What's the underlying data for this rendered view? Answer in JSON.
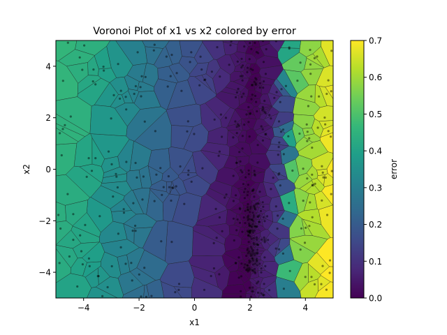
{
  "chart_data": {
    "type": "heatmap",
    "subtype": "voronoi",
    "title": "Voronoi Plot of x1 vs x2 colored by error",
    "xlabel": "x1",
    "ylabel": "x2",
    "xlim": [
      -5,
      5
    ],
    "ylim": [
      -5,
      5
    ],
    "xticks": [
      "−4",
      "−2",
      "0",
      "2",
      "4"
    ],
    "xtick_values": [
      -4,
      -2,
      0,
      2,
      4
    ],
    "yticks": [
      "−4",
      "−2",
      "0",
      "2",
      "4"
    ],
    "ytick_values": [
      -4,
      -2,
      0,
      2,
      4
    ],
    "colorbar": {
      "label": "error",
      "colormap": "viridis",
      "range": [
        0.0,
        0.7
      ],
      "ticks": [
        "0.0",
        "0.1",
        "0.2",
        "0.3",
        "0.4",
        "0.5",
        "0.6",
        "0.7"
      ],
      "tick_values": [
        0.0,
        0.1,
        0.2,
        0.3,
        0.4,
        0.5,
        0.6,
        0.7
      ]
    },
    "error_profile": {
      "description_points": [
        {
          "x1": -5,
          "error": 0.45
        },
        {
          "x1": -4,
          "error": 0.42
        },
        {
          "x1": -3,
          "error": 0.36
        },
        {
          "x1": -2,
          "error": 0.28
        },
        {
          "x1": -1,
          "error": 0.2
        },
        {
          "x1": 0,
          "error": 0.15
        },
        {
          "x1": 1,
          "error": 0.06
        },
        {
          "x1": 2,
          "error": 0.0
        },
        {
          "x1": 3,
          "error": 0.1
        },
        {
          "x1": 3.5,
          "error": 0.5
        },
        {
          "x1": 4,
          "error": 0.58
        },
        {
          "x1": 5,
          "error": 0.7
        }
      ]
    },
    "grid": false,
    "legend": "none"
  },
  "colors": {
    "viridis_stops": [
      "#440154",
      "#482878",
      "#3e4a89",
      "#31688e",
      "#26828e",
      "#1f9e89",
      "#35b779",
      "#6ece58",
      "#b5de2b",
      "#fde725"
    ],
    "edge": "#1a1a1a",
    "point": "#000000"
  }
}
